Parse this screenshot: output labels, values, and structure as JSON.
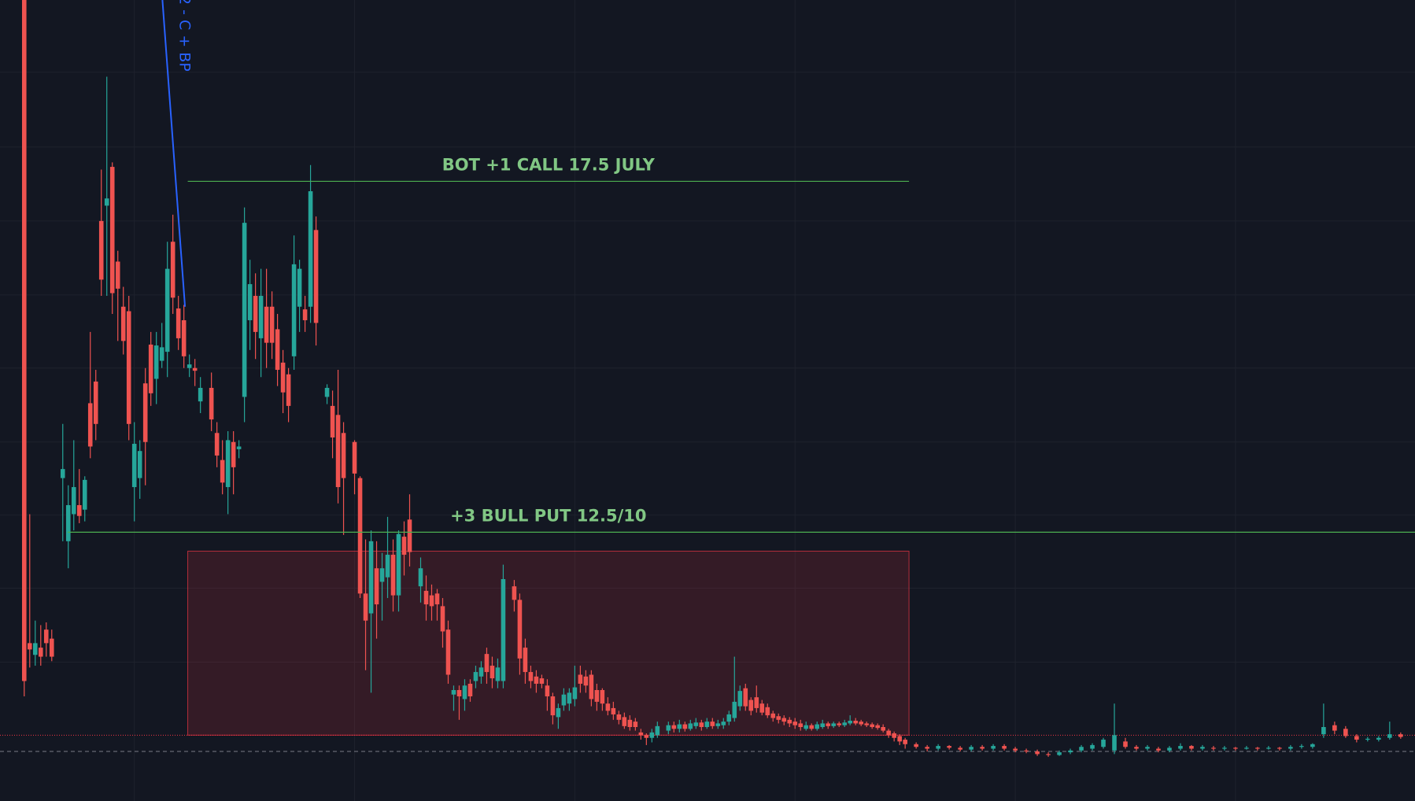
{
  "chart_data": {
    "type": "candlestick",
    "up_color": "#26a69a",
    "down_color": "#ef5350",
    "xlim": [
      -4.4,
      252.6
    ],
    "ylim": [
      0,
      888
    ],
    "xticks": [
      20,
      60,
      100,
      140,
      180,
      220
    ],
    "yticks": [
      154,
      236,
      317,
      398,
      480,
      561,
      643,
      725,
      808
    ],
    "grid": true,
    "x": [
      0,
      1,
      2,
      3,
      4,
      5,
      7,
      8,
      9,
      10,
      11,
      12,
      13,
      14,
      15,
      16,
      17,
      18,
      19,
      20,
      21,
      22,
      23,
      24,
      25,
      26,
      27,
      28,
      29,
      30,
      31,
      32,
      34,
      35,
      36,
      37,
      38,
      39,
      40,
      41,
      42,
      43,
      44,
      45,
      46,
      47,
      48,
      49,
      50,
      51,
      52,
      53,
      55,
      56,
      57,
      58,
      60,
      61,
      62,
      63,
      64,
      65,
      66,
      67,
      68,
      69,
      70,
      72,
      73,
      74,
      75,
      76,
      77,
      78,
      79,
      80,
      81,
      82,
      83,
      84,
      85,
      86,
      87,
      89,
      90,
      91,
      92,
      93,
      94,
      95,
      96,
      97,
      98,
      99,
      100,
      101,
      102,
      103,
      104,
      105,
      106,
      107,
      108,
      109,
      110,
      111,
      112,
      113,
      114,
      115,
      117,
      118,
      119,
      120,
      121,
      122,
      123,
      124,
      125,
      126,
      127,
      128,
      129,
      130,
      131,
      132,
      133,
      134,
      135,
      136,
      137,
      138,
      139,
      140,
      141,
      142,
      143,
      144,
      145,
      146,
      147,
      148,
      149,
      150,
      151,
      152,
      153,
      154,
      155,
      156,
      157,
      158,
      159,
      160,
      162,
      164,
      166,
      168,
      170,
      172,
      174,
      176,
      178,
      180,
      182,
      184,
      186,
      188,
      190,
      192,
      194,
      196,
      198,
      200,
      202,
      204,
      206,
      208,
      210,
      212,
      214,
      216,
      218,
      220,
      222,
      224,
      226,
      228,
      230,
      232,
      234,
      236,
      238,
      240,
      242,
      244,
      246,
      248,
      250
    ],
    "open": [
      888,
      175,
      162,
      170,
      190,
      180,
      358,
      288,
      318,
      328,
      323,
      441,
      465,
      643,
      660,
      703,
      598,
      548,
      543,
      348,
      358,
      463,
      506,
      468,
      488,
      498,
      620,
      546,
      533,
      480,
      480,
      443,
      458,
      408,
      378,
      348,
      398,
      390,
      448,
      533,
      560,
      513,
      548,
      548,
      523,
      486,
      473,
      493,
      548,
      545,
      548,
      633,
      448,
      438,
      428,
      408,
      398,
      358,
      230,
      208,
      258,
      243,
      248,
      273,
      228,
      293,
      312,
      238,
      233,
      228,
      230,
      216,
      190,
      118,
      123,
      113,
      130,
      133,
      138,
      163,
      150,
      133,
      133,
      238,
      223,
      170,
      143,
      138,
      136,
      128,
      116,
      93,
      106,
      108,
      113,
      140,
      138,
      140,
      123,
      123,
      108,
      103,
      96,
      93,
      90,
      88,
      76,
      73,
      70,
      73,
      78,
      84,
      80,
      85,
      80,
      83,
      87,
      82,
      88,
      83,
      84,
      88,
      92,
      105,
      125,
      112,
      115,
      108,
      104,
      97,
      94,
      92,
      90,
      88,
      86,
      80,
      84,
      80,
      82,
      86,
      83,
      86,
      84,
      86,
      89,
      88,
      86,
      85,
      84,
      82,
      78,
      75,
      72,
      68,
      63,
      60,
      58,
      61,
      59,
      57,
      60,
      58,
      61,
      58,
      56,
      55,
      52,
      51,
      54,
      56,
      58,
      60,
      56,
      66,
      60,
      58,
      58,
      56,
      58,
      61,
      58,
      59,
      58,
      59,
      58,
      59,
      58,
      59,
      58,
      60,
      60,
      74,
      84,
      80,
      72,
      68,
      68,
      70,
      74
    ],
    "high": [
      888,
      318,
      200,
      195,
      198,
      190,
      418,
      350,
      400,
      368,
      360,
      520,
      478,
      700,
      803,
      708,
      610,
      570,
      560,
      420,
      400,
      480,
      520,
      520,
      530,
      620,
      650,
      560,
      550,
      495,
      490,
      470,
      475,
      420,
      400,
      410,
      410,
      400,
      658,
      600,
      585,
      590,
      590,
      565,
      540,
      500,
      480,
      627,
      600,
      560,
      705,
      648,
      462,
      455,
      478,
      420,
      400,
      360,
      290,
      300,
      288,
      275,
      315,
      290,
      300,
      310,
      340,
      270,
      250,
      240,
      235,
      225,
      200,
      128,
      128,
      135,
      135,
      150,
      155,
      170,
      160,
      158,
      262,
      245,
      230,
      180,
      150,
      145,
      140,
      135,
      120,
      108,
      125,
      125,
      150,
      150,
      145,
      145,
      130,
      125,
      115,
      110,
      100,
      98,
      95,
      92,
      80,
      75,
      80,
      88,
      88,
      88,
      90,
      88,
      90,
      92,
      90,
      92,
      92,
      90,
      92,
      100,
      160,
      128,
      130,
      115,
      128,
      112,
      108,
      100,
      97,
      95,
      93,
      92,
      90,
      88,
      86,
      88,
      90,
      88,
      88,
      88,
      90,
      95,
      92,
      90,
      88,
      87,
      86,
      85,
      80,
      77,
      74,
      70,
      65,
      62,
      63,
      62,
      61,
      62,
      62,
      63,
      63,
      60,
      58,
      57,
      54,
      56,
      58,
      62,
      64,
      70,
      108,
      70,
      62,
      62,
      60,
      61,
      64,
      62,
      62,
      61,
      61,
      60,
      61,
      60,
      61,
      60,
      62,
      63,
      64,
      108,
      88,
      83,
      74,
      71,
      72,
      88,
      76
    ],
    "low": [
      116,
      148,
      150,
      150,
      160,
      155,
      288,
      258,
      300,
      308,
      310,
      380,
      400,
      560,
      560,
      540,
      510,
      495,
      400,
      310,
      335,
      350,
      438,
      440,
      480,
      470,
      540,
      500,
      480,
      470,
      460,
      430,
      410,
      370,
      340,
      318,
      340,
      380,
      420,
      500,
      490,
      470,
      480,
      490,
      460,
      430,
      420,
      478,
      520,
      520,
      530,
      505,
      440,
      380,
      330,
      295,
      340,
      225,
      145,
      120,
      180,
      200,
      225,
      210,
      210,
      250,
      260,
      220,
      200,
      200,
      200,
      170,
      130,
      100,
      90,
      100,
      110,
      125,
      130,
      130,
      125,
      125,
      125,
      210,
      140,
      130,
      125,
      120,
      125,
      100,
      85,
      80,
      100,
      100,
      105,
      120,
      120,
      105,
      100,
      100,
      95,
      90,
      85,
      80,
      78,
      78,
      68,
      62,
      65,
      70,
      74,
      76,
      76,
      77,
      78,
      80,
      78,
      80,
      80,
      80,
      80,
      84,
      88,
      100,
      100,
      95,
      98,
      95,
      92,
      88,
      86,
      84,
      82,
      80,
      78,
      78,
      78,
      78,
      80,
      80,
      81,
      82,
      82,
      84,
      84,
      83,
      82,
      80,
      79,
      76,
      70,
      66,
      62,
      58,
      58,
      55,
      56,
      57,
      55,
      55,
      56,
      56,
      56,
      54,
      53,
      50,
      49,
      50,
      52,
      54,
      56,
      58,
      52,
      58,
      56,
      56,
      54,
      54,
      56,
      56,
      56,
      56,
      56,
      56,
      57,
      56,
      57,
      56,
      56,
      58,
      58,
      70,
      74,
      70,
      65,
      66,
      66,
      68,
      69
    ],
    "close": [
      133,
      168,
      175,
      160,
      175,
      160,
      368,
      328,
      348,
      316,
      356,
      393,
      418,
      578,
      668,
      563,
      568,
      510,
      418,
      396,
      388,
      398,
      452,
      505,
      503,
      590,
      558,
      513,
      493,
      484,
      477,
      458,
      423,
      383,
      353,
      400,
      370,
      393,
      641,
      573,
      520,
      560,
      508,
      508,
      478,
      453,
      438,
      595,
      590,
      533,
      676,
      530,
      458,
      403,
      348,
      358,
      363,
      230,
      200,
      288,
      218,
      258,
      273,
      228,
      296,
      273,
      276,
      258,
      218,
      216,
      218,
      188,
      140,
      123,
      116,
      128,
      116,
      143,
      148,
      143,
      136,
      148,
      246,
      223,
      158,
      143,
      133,
      130,
      130,
      116,
      95,
      103,
      118,
      120,
      126,
      130,
      128,
      113,
      110,
      108,
      100,
      96,
      90,
      83,
      82,
      82,
      73,
      70,
      76,
      83,
      84,
      80,
      85,
      80,
      86,
      87,
      82,
      88,
      83,
      86,
      88,
      96,
      110,
      122,
      105,
      100,
      103,
      98,
      95,
      92,
      90,
      88,
      86,
      84,
      82,
      84,
      80,
      85,
      86,
      83,
      86,
      84,
      87,
      89,
      86,
      85,
      84,
      82,
      81,
      78,
      73,
      70,
      66,
      63,
      60,
      58,
      61,
      59,
      57,
      60,
      58,
      61,
      58,
      56,
      55,
      52,
      51,
      54,
      56,
      60,
      62,
      68,
      73,
      60,
      58,
      60,
      56,
      59,
      61,
      58,
      60,
      58,
      59,
      58,
      59,
      58,
      59,
      58,
      60,
      61,
      63,
      82,
      78,
      72,
      68,
      69,
      70,
      74,
      71
    ],
    "annotations": [
      {
        "text": "BOT +1 CALL 17.5 JULY",
        "value": 687,
        "x": [
          29.7,
          160.7
        ],
        "color": "#4caf50",
        "text_color": "#81c784"
      },
      {
        "text": "+3 BULL PUT 12.5/10",
        "value": 298,
        "x": [
          7.9,
          252.6
        ],
        "color": "#4caf50",
        "text_color": "#81c784"
      }
    ],
    "box": {
      "x": [
        29.7,
        160.7
      ],
      "y": [
        73,
        277
      ],
      "color": "#f23645"
    },
    "price_lines": [
      {
        "value": 73,
        "color": "#f23645"
      },
      {
        "value": 55,
        "color": "#787b86"
      }
    ],
    "trendline": {
      "text": "2 - C + BP",
      "x": [
        25.1,
        29.2
      ],
      "y": [
        888,
        548
      ],
      "color": "#2962ff"
    }
  }
}
